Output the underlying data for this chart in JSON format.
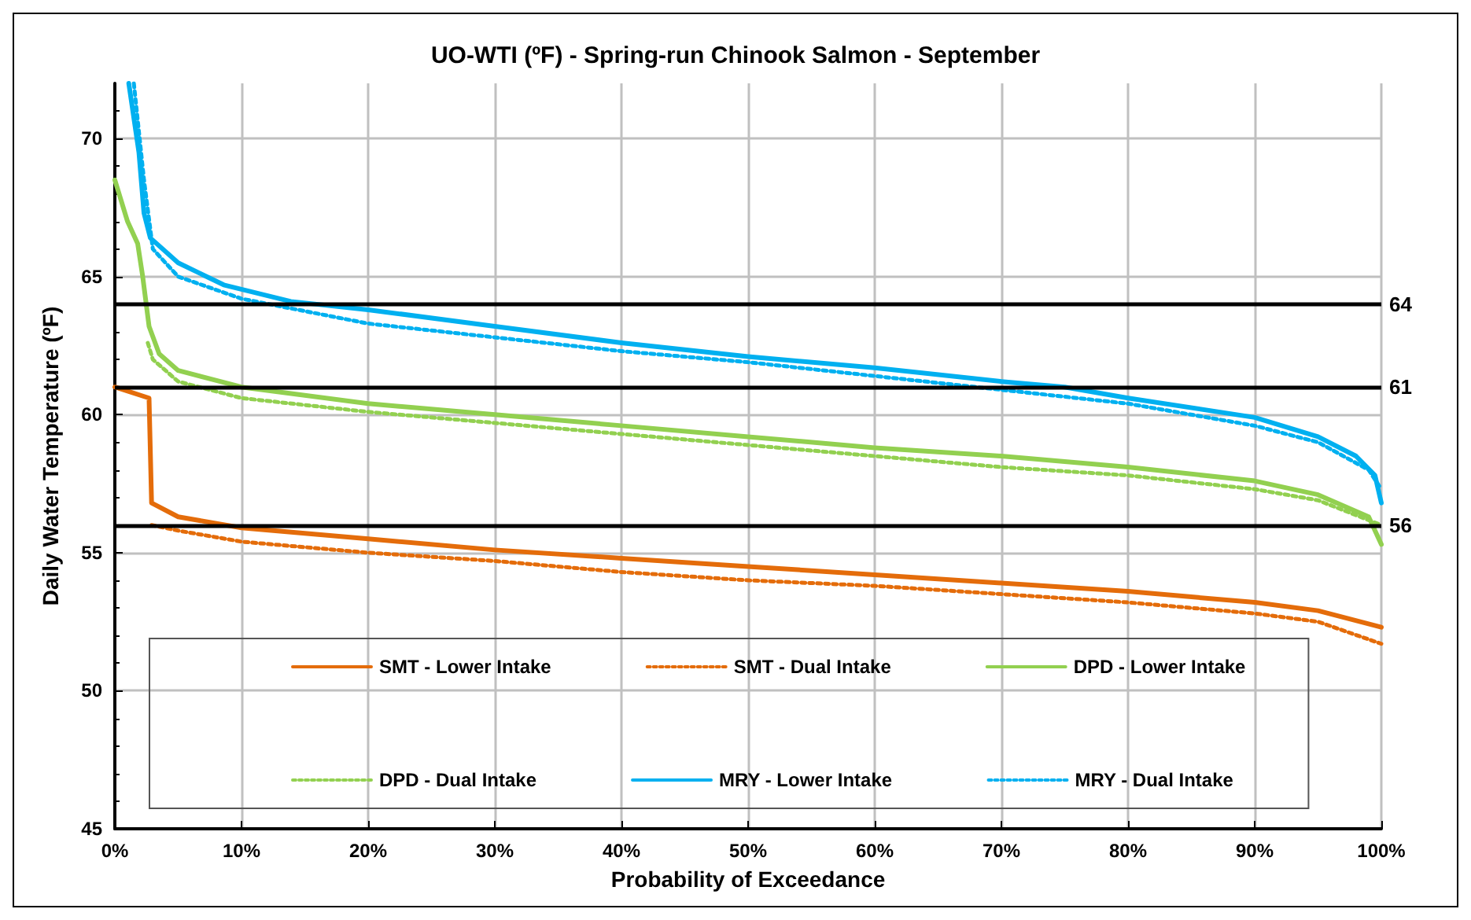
{
  "chart_data": {
    "type": "line",
    "title": "UO-WTI (ºF) - Spring-run Chinook Salmon - September",
    "xlabel": "Probability of Exceedance",
    "ylabel": "Daily Water Temperature (ºF)",
    "xlim": [
      0,
      100
    ],
    "xticks": [
      {
        "value": 0,
        "label": "0%"
      },
      {
        "value": 10,
        "label": "10%"
      },
      {
        "value": 20,
        "label": "20%"
      },
      {
        "value": 30,
        "label": "30%"
      },
      {
        "value": 40,
        "label": "40%"
      },
      {
        "value": 50,
        "label": "50%"
      },
      {
        "value": 60,
        "label": "60%"
      },
      {
        "value": 70,
        "label": "70%"
      },
      {
        "value": 80,
        "label": "80%"
      },
      {
        "value": 90,
        "label": "90%"
      },
      {
        "value": 100,
        "label": "100%"
      }
    ],
    "ylim": [
      45,
      72
    ],
    "yticks": [
      45,
      50,
      55,
      60,
      65,
      70
    ],
    "grid": true,
    "legend": "bottom",
    "marker": "none",
    "ref_lines": [
      {
        "axis": "y",
        "value": 64,
        "label": "64",
        "color": "#000000"
      },
      {
        "axis": "y",
        "value": 61,
        "label": "61",
        "color": "#000000"
      },
      {
        "axis": "y",
        "value": 56,
        "label": "56",
        "color": "#000000"
      }
    ],
    "series": [
      {
        "name": "SMT - Lower Intake",
        "color": "#e46c0a",
        "line_style": "solid",
        "x": [
          0,
          2.7,
          2.9,
          5,
          10,
          20,
          30,
          40,
          50,
          60,
          70,
          80,
          90,
          95,
          100
        ],
        "values": [
          61.0,
          60.6,
          56.8,
          56.3,
          55.9,
          55.5,
          55.1,
          54.8,
          54.5,
          54.2,
          53.9,
          53.6,
          53.2,
          52.9,
          52.3
        ]
      },
      {
        "name": "SMT - Dual Intake",
        "color": "#e46c0a",
        "line_style": "dotted",
        "x": [
          2.9,
          5,
          10,
          20,
          30,
          40,
          50,
          60,
          70,
          80,
          90,
          95,
          100
        ],
        "values": [
          56.0,
          55.8,
          55.4,
          55.0,
          54.7,
          54.3,
          54.0,
          53.8,
          53.5,
          53.2,
          52.8,
          52.5,
          51.7
        ]
      },
      {
        "name": "DPD - Lower Intake",
        "color": "#92d050",
        "line_style": "solid",
        "x": [
          0,
          1,
          1.8,
          2.2,
          2.7,
          3.5,
          5,
          10,
          20,
          30,
          40,
          50,
          60,
          70,
          80,
          90,
          95,
          99,
          100
        ],
        "values": [
          68.5,
          67.0,
          66.2,
          65.0,
          63.2,
          62.2,
          61.6,
          61.0,
          60.4,
          60.0,
          59.6,
          59.2,
          58.8,
          58.5,
          58.1,
          57.6,
          57.1,
          56.3,
          55.3
        ]
      },
      {
        "name": "DPD - Dual Intake",
        "color": "#92d050",
        "line_style": "dotted",
        "x": [
          2.6,
          3,
          5,
          10,
          20,
          30,
          40,
          50,
          60,
          70,
          80,
          90,
          95,
          100
        ],
        "values": [
          62.6,
          62.0,
          61.2,
          60.6,
          60.1,
          59.7,
          59.3,
          58.9,
          58.5,
          58.1,
          57.8,
          57.3,
          56.9,
          56.0
        ]
      },
      {
        "name": "MRY - Lower Intake",
        "color": "#00b0f0",
        "line_style": "solid",
        "x": [
          1.1,
          1.9,
          2.3,
          2.8,
          5,
          8.6,
          13.9,
          20,
          30,
          40,
          50,
          60,
          70,
          75,
          80,
          90,
          95,
          98,
          99.5,
          100
        ],
        "values": [
          72.0,
          69.5,
          67.3,
          66.4,
          65.5,
          64.7,
          64.1,
          63.8,
          63.2,
          62.6,
          62.1,
          61.7,
          61.2,
          61.0,
          60.6,
          59.9,
          59.2,
          58.5,
          57.8,
          56.8
        ]
      },
      {
        "name": "MRY - Dual Intake",
        "color": "#00b0f0",
        "line_style": "dotted",
        "x": [
          1.5,
          2.3,
          3,
          5,
          10,
          20,
          30,
          40,
          50,
          60,
          70,
          80,
          90,
          95,
          99,
          100
        ],
        "values": [
          72.0,
          68.5,
          66.0,
          65.0,
          64.2,
          63.3,
          62.8,
          62.3,
          61.9,
          61.4,
          60.9,
          60.4,
          59.6,
          59.0,
          58.0,
          57.3
        ]
      }
    ]
  }
}
